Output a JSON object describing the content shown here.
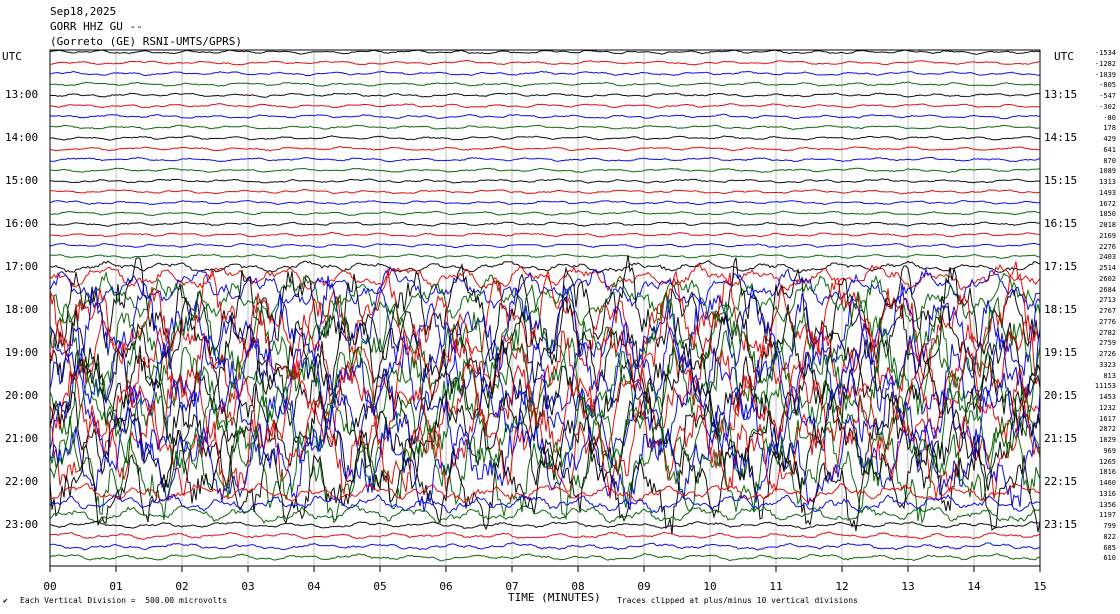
{
  "header": {
    "date": "Sep18,2025",
    "station": "GORR HHZ GU --",
    "network": "(Gorreto (GE) RSNI-UMTS/GPRS)"
  },
  "left_axis_label": "UTC",
  "right_axis_label": "UTC",
  "footer": {
    "scale_note": "Each Vertical Division =  500.00 microvolts",
    "clip_note": "Traces clipped at plus/minus 10 vertical divisions",
    "left_mark": "✔"
  },
  "chart_data": {
    "type": "line",
    "title": "Sep18,2025 GORR HHZ GU --",
    "xlabel": "TIME (MINUTES)",
    "ylabel": "UTC",
    "xlim": [
      0,
      15
    ],
    "x_ticks": [
      "00",
      "01",
      "02",
      "03",
      "04",
      "05",
      "06",
      "07",
      "08",
      "09",
      "10",
      "11",
      "12",
      "13",
      "14",
      "15"
    ],
    "left_hour_labels": [
      "13:00",
      "14:00",
      "15:00",
      "16:00",
      "17:00",
      "18:00",
      "19:00",
      "20:00",
      "21:00",
      "22:00",
      "23:00"
    ],
    "right_hour_labels": [
      "13:15",
      "14:15",
      "15:15",
      "16:15",
      "17:15",
      "18:15",
      "19:15",
      "20:15",
      "21:15",
      "22:15",
      "23:15"
    ],
    "trace_colors": [
      "#000000",
      "#e00000",
      "#0000e0",
      "#006000"
    ],
    "trace_count": 48,
    "trace_scale_values": [
      "-1534",
      "-1282",
      "-1039",
      "-805",
      "-547",
      "-302",
      "-80",
      "178",
      "429",
      "641",
      "870",
      "1089",
      "1313",
      "1493",
      "1672",
      "1850",
      "2018",
      "2169",
      "2276",
      "2403",
      "2514",
      "2602",
      "2684",
      "2713",
      "2767",
      "2776",
      "2782",
      "2759",
      "2726",
      "3323",
      "813",
      "11153",
      "1453",
      "1232",
      "1617",
      "2872",
      "1829",
      "969",
      "1265",
      "1816",
      "1460",
      "1316",
      "1356",
      "1197",
      "799",
      "822",
      "685",
      "610"
    ],
    "grid": true
  }
}
